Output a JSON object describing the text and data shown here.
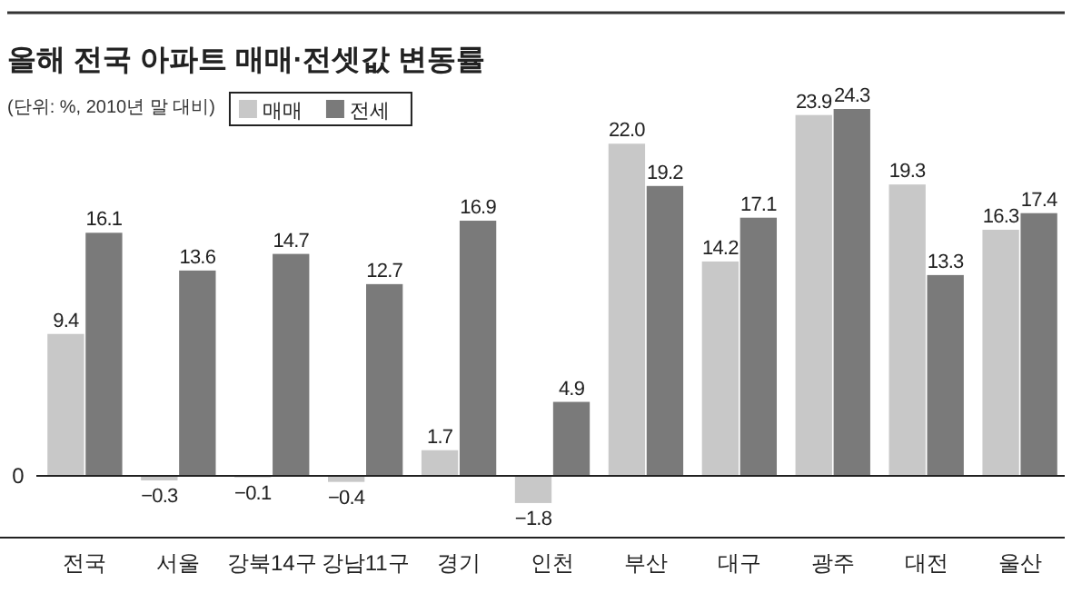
{
  "chart_data": {
    "type": "bar",
    "title": "올해 전국 아파트 매매·전셋값 변동률",
    "subtitle": "(단위: %, 2010년 말 대비)",
    "categories": [
      "전국",
      "서울",
      "강북14구",
      "강남11구",
      "경기",
      "인천",
      "부산",
      "대구",
      "광주",
      "대전",
      "울산"
    ],
    "series": [
      {
        "name": "매매",
        "color": "#c8c8c8",
        "values": [
          9.4,
          -0.3,
          -0.1,
          -0.4,
          1.7,
          -1.8,
          22.0,
          14.2,
          23.9,
          19.3,
          16.3
        ],
        "value_labels": [
          "9.4",
          "−0.3",
          "−0.1",
          "−0.4",
          "1.7",
          "−1.8",
          "22.0",
          "14.2",
          "23.9",
          "19.3",
          "16.3"
        ]
      },
      {
        "name": "전세",
        "color": "#7a7a7a",
        "values": [
          16.1,
          13.6,
          14.7,
          12.7,
          16.9,
          4.9,
          19.2,
          17.1,
          24.3,
          13.3,
          17.4
        ],
        "value_labels": [
          "16.1",
          "13.6",
          "14.7",
          "12.7",
          "16.9",
          "4.9",
          "19.2",
          "17.1",
          "24.3",
          "13.3",
          "17.4"
        ]
      }
    ],
    "annotations": [
      "0"
    ],
    "legend": "top left"
  }
}
